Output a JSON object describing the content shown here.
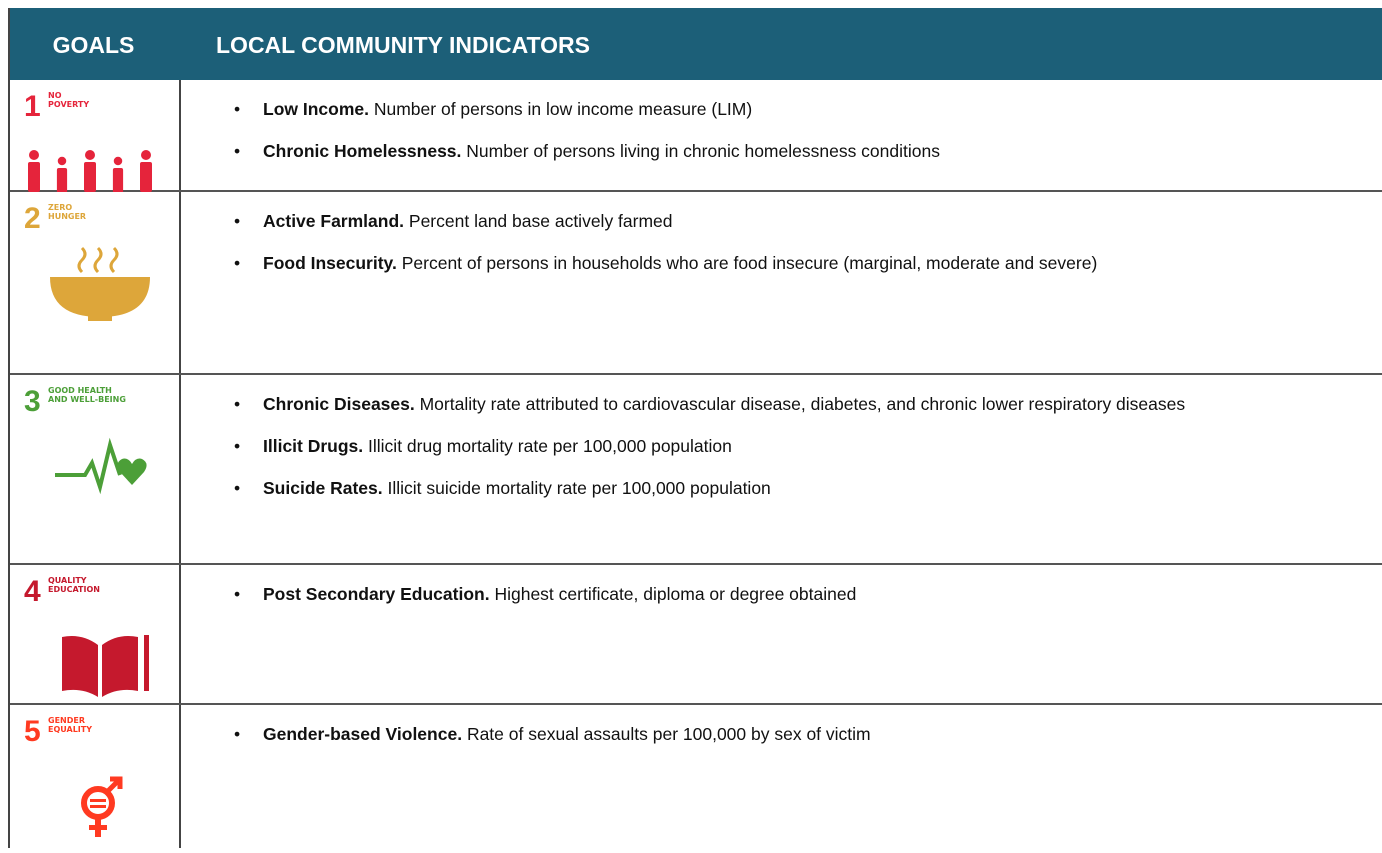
{
  "header": {
    "goals": "GOALS",
    "indicators": "LOCAL COMMUNITY INDICATORS"
  },
  "rows": [
    {
      "number": "1",
      "title": [
        "NO",
        "POVERTY"
      ],
      "color": "#e5243b",
      "indicators": [
        {
          "term": "Low Income.",
          "text": "Number of persons in low income measure (LIM)"
        },
        {
          "term": "Chronic Homelessness.",
          "text": "Number of persons living in chronic homelessness conditions"
        }
      ]
    },
    {
      "number": "2",
      "title": [
        "ZERO",
        "HUNGER"
      ],
      "color": "#dda63a",
      "indicators": [
        {
          "term": "Active Farmland.",
          "text": "Percent land base actively farmed"
        },
        {
          "term": "Food Insecurity.",
          "text": "Percent of persons in households who are food insecure (marginal, moderate and severe)"
        }
      ]
    },
    {
      "number": "3",
      "title": [
        "GOOD HEALTH",
        "AND WELL-BEING"
      ],
      "color": "#4c9f38",
      "indicators": [
        {
          "term": "Chronic Diseases.",
          "text": "Mortality rate attributed to cardiovascular disease, diabetes, and chronic lower respiratory diseases"
        },
        {
          "term": "Illicit Drugs.",
          "text": "Illicit drug mortality rate per 100,000 population"
        },
        {
          "term": "Suicide Rates.",
          "text": "Illicit suicide mortality rate per 100,000 population"
        }
      ]
    },
    {
      "number": "4",
      "title": [
        "QUALITY",
        "EDUCATION"
      ],
      "color": "#c5192d",
      "indicators": [
        {
          "term": "Post Secondary Education.",
          "text": "Highest certificate, diploma or degree obtained"
        }
      ]
    },
    {
      "number": "5",
      "title": [
        "GENDER",
        "EQUALITY"
      ],
      "color": "#ff3a21",
      "indicators": [
        {
          "term": "Gender-based Violence.",
          "text": "Rate of sexual assaults per 100,000 by sex of victim"
        }
      ]
    }
  ]
}
